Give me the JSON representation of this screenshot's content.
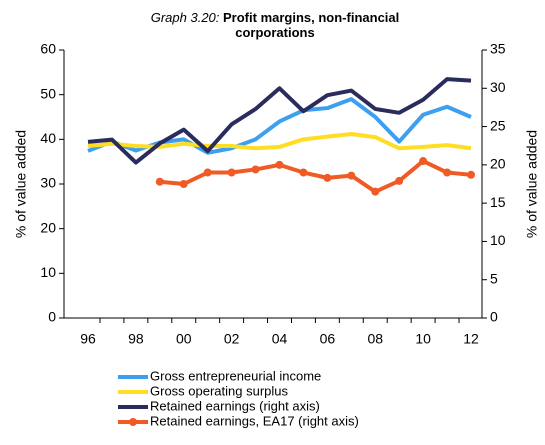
{
  "chart_data": {
    "type": "line",
    "title_label": "Graph 3.20:",
    "title": "Profit margins, non-financial corporations",
    "ylabel": "% of value added",
    "y2label": "% of value added",
    "categories": [
      "96",
      null,
      "98",
      null,
      "00",
      null,
      "02",
      null,
      "04",
      null,
      "06",
      null,
      "08",
      null,
      "10",
      null,
      "12"
    ],
    "series": [
      {
        "name": "Gross entrepreneurial income",
        "color": "#3d9ff0",
        "values": [
          37.4,
          39.5,
          37.5,
          39.3,
          40,
          37,
          38,
          40,
          44,
          46.5,
          47,
          49,
          45,
          39.5,
          45.5,
          47.3,
          45
        ]
      },
      {
        "name": "Gross operating surplus",
        "color": "#ffdd22",
        "values": [
          38.5,
          39,
          38.5,
          38.3,
          39,
          38.5,
          38.5,
          38,
          38.3,
          40,
          40.6,
          41.2,
          40.5,
          38,
          38.3,
          38.7,
          38
        ]
      },
      {
        "name": "Retained earnings (right axis)",
        "color": "#292c5c",
        "axis": "y2",
        "values": [
          23,
          23.3,
          20.3,
          22.8,
          24.6,
          21.8,
          25.3,
          27.3,
          30,
          27,
          29.1,
          29.7,
          27.3,
          26.8,
          28.5,
          31.2,
          31
        ]
      },
      {
        "name": "Retained earnings, EA17 (right axis)",
        "color": "#f05a24",
        "axis": "y2",
        "marker": true,
        "values": [
          null,
          null,
          null,
          17.8,
          17.5,
          19,
          19,
          19.4,
          20,
          19,
          18.3,
          18.6,
          16.5,
          17.9,
          20.5,
          19,
          18.7
        ]
      }
    ],
    "ylim": [
      0,
      60
    ],
    "yticks": [
      0,
      10,
      20,
      30,
      40,
      50,
      60
    ],
    "y2lim": [
      0,
      35
    ],
    "y2ticks": [
      0,
      5,
      10,
      15,
      20,
      25,
      30,
      35
    ],
    "grid": false,
    "legend": "bottom"
  }
}
